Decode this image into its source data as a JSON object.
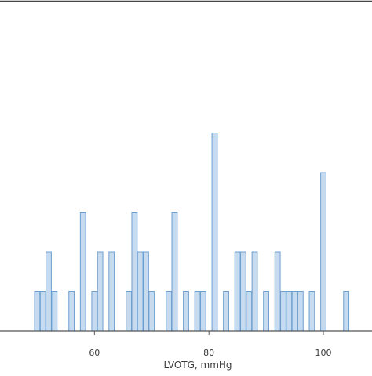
{
  "chart_data": {
    "type": "bar",
    "xlabel": "LVOTG, mmHg",
    "ylabel": "",
    "title": "",
    "x_ticks": [
      60,
      80,
      100
    ],
    "xlim": [
      43.5,
      108.5
    ],
    "ylim": [
      0,
      5
    ],
    "grid": false,
    "bars": [
      {
        "x": 50,
        "value": 1
      },
      {
        "x": 51,
        "value": 1
      },
      {
        "x": 52,
        "value": 2
      },
      {
        "x": 53,
        "value": 1
      },
      {
        "x": 56,
        "value": 1
      },
      {
        "x": 58,
        "value": 3
      },
      {
        "x": 60,
        "value": 1
      },
      {
        "x": 61,
        "value": 2
      },
      {
        "x": 63,
        "value": 2
      },
      {
        "x": 66,
        "value": 1
      },
      {
        "x": 67,
        "value": 3
      },
      {
        "x": 68,
        "value": 2
      },
      {
        "x": 69,
        "value": 2
      },
      {
        "x": 70,
        "value": 1
      },
      {
        "x": 73,
        "value": 1
      },
      {
        "x": 74,
        "value": 3
      },
      {
        "x": 76,
        "value": 1
      },
      {
        "x": 78,
        "value": 1
      },
      {
        "x": 79,
        "value": 1
      },
      {
        "x": 81,
        "value": 5
      },
      {
        "x": 83,
        "value": 1
      },
      {
        "x": 85,
        "value": 2
      },
      {
        "x": 86,
        "value": 2
      },
      {
        "x": 87,
        "value": 1
      },
      {
        "x": 88,
        "value": 2
      },
      {
        "x": 90,
        "value": 1
      },
      {
        "x": 92,
        "value": 2
      },
      {
        "x": 93,
        "value": 1
      },
      {
        "x": 94,
        "value": 1
      },
      {
        "x": 95,
        "value": 1
      },
      {
        "x": 96,
        "value": 1
      },
      {
        "x": 98,
        "value": 1
      },
      {
        "x": 100,
        "value": 4
      },
      {
        "x": 104,
        "value": 1
      }
    ]
  },
  "colors": {
    "bar_fill": "#c6dbf0",
    "bar_stroke": "#6f9fcf",
    "axis": "#555555"
  }
}
